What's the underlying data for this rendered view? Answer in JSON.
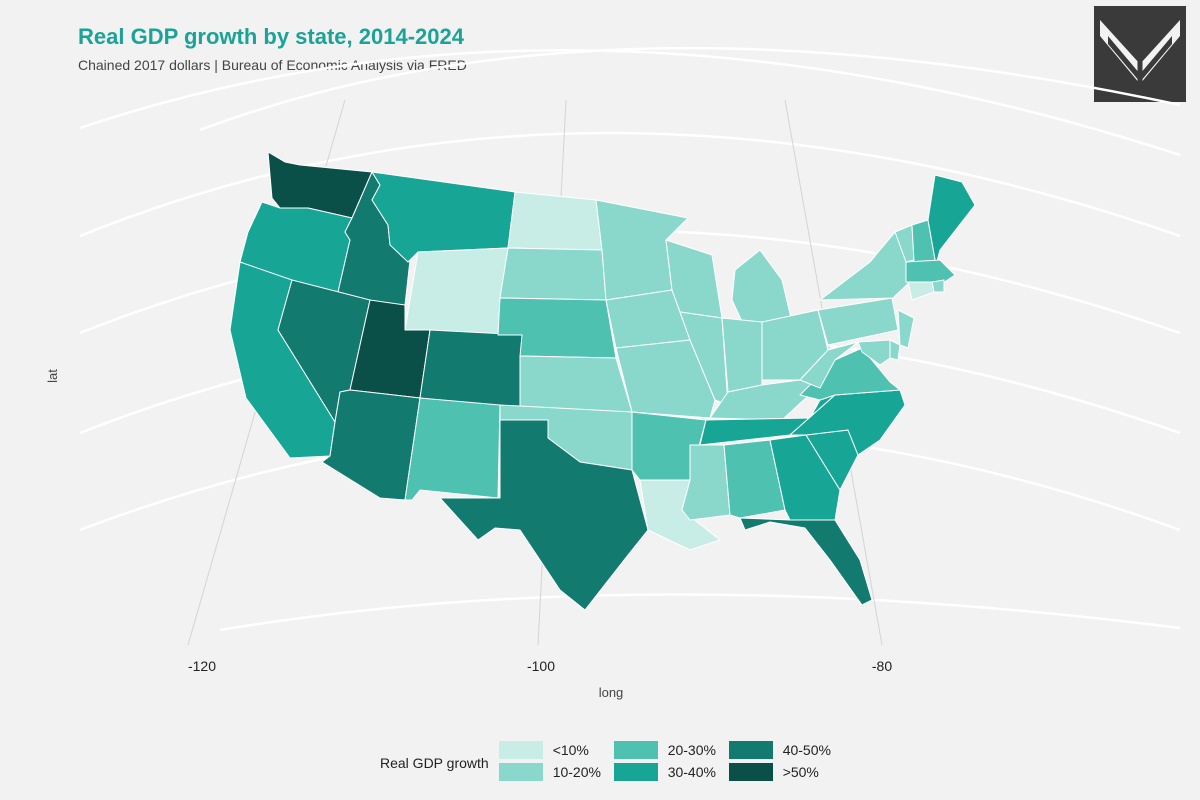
{
  "title": "Real GDP growth by state, 2014-2024",
  "subtitle": "Chained 2017 dollars | Bureau of Economic Analysis via FRED",
  "axes": {
    "x_label": "long",
    "y_label": "lat",
    "x_ticks": [
      "-120",
      "-100",
      "-80"
    ]
  },
  "legend": {
    "title": "Real GDP growth",
    "items": [
      {
        "label": "<10%",
        "color": "#c8ece6"
      },
      {
        "label": "10-20%",
        "color": "#8ad8cc"
      },
      {
        "label": "20-30%",
        "color": "#4fc1b1"
      },
      {
        "label": "30-40%",
        "color": "#17a595"
      },
      {
        "label": "40-50%",
        "color": "#127a6e"
      },
      {
        "label": ">50%",
        "color": "#0a4f48"
      }
    ]
  },
  "states": [
    {
      "code": "WA",
      "category": 5
    },
    {
      "code": "OR",
      "category": 3
    },
    {
      "code": "CA",
      "category": 3
    },
    {
      "code": "ID",
      "category": 4
    },
    {
      "code": "NV",
      "category": 4
    },
    {
      "code": "MT",
      "category": 3
    },
    {
      "code": "WY",
      "category": 0
    },
    {
      "code": "UT",
      "category": 5
    },
    {
      "code": "AZ",
      "category": 4
    },
    {
      "code": "CO",
      "category": 4
    },
    {
      "code": "NM",
      "category": 2
    },
    {
      "code": "ND",
      "category": 0
    },
    {
      "code": "SD",
      "category": 1
    },
    {
      "code": "NE",
      "category": 2
    },
    {
      "code": "KS",
      "category": 1
    },
    {
      "code": "OK",
      "category": 1
    },
    {
      "code": "TX",
      "category": 4
    },
    {
      "code": "MN",
      "category": 1
    },
    {
      "code": "IA",
      "category": 1
    },
    {
      "code": "MO",
      "category": 1
    },
    {
      "code": "AR",
      "category": 2
    },
    {
      "code": "LA",
      "category": 0
    },
    {
      "code": "WI",
      "category": 1
    },
    {
      "code": "IL",
      "category": 1
    },
    {
      "code": "MI",
      "category": 1
    },
    {
      "code": "IN",
      "category": 1
    },
    {
      "code": "OH",
      "category": 1
    },
    {
      "code": "KY",
      "category": 1
    },
    {
      "code": "TN",
      "category": 3
    },
    {
      "code": "MS",
      "category": 1
    },
    {
      "code": "AL",
      "category": 2
    },
    {
      "code": "GA",
      "category": 3
    },
    {
      "code": "FL",
      "category": 4
    },
    {
      "code": "SC",
      "category": 3
    },
    {
      "code": "NC",
      "category": 3
    },
    {
      "code": "VA",
      "category": 2
    },
    {
      "code": "WV",
      "category": 1
    },
    {
      "code": "PA",
      "category": 1
    },
    {
      "code": "NY",
      "category": 1
    },
    {
      "code": "VT",
      "category": 1
    },
    {
      "code": "NH",
      "category": 2
    },
    {
      "code": "ME",
      "category": 3
    },
    {
      "code": "MA",
      "category": 2
    },
    {
      "code": "RI",
      "category": 1
    },
    {
      "code": "CT",
      "category": 0
    },
    {
      "code": "NJ",
      "category": 1
    },
    {
      "code": "DE",
      "category": 1
    },
    {
      "code": "MD",
      "category": 1
    }
  ]
}
